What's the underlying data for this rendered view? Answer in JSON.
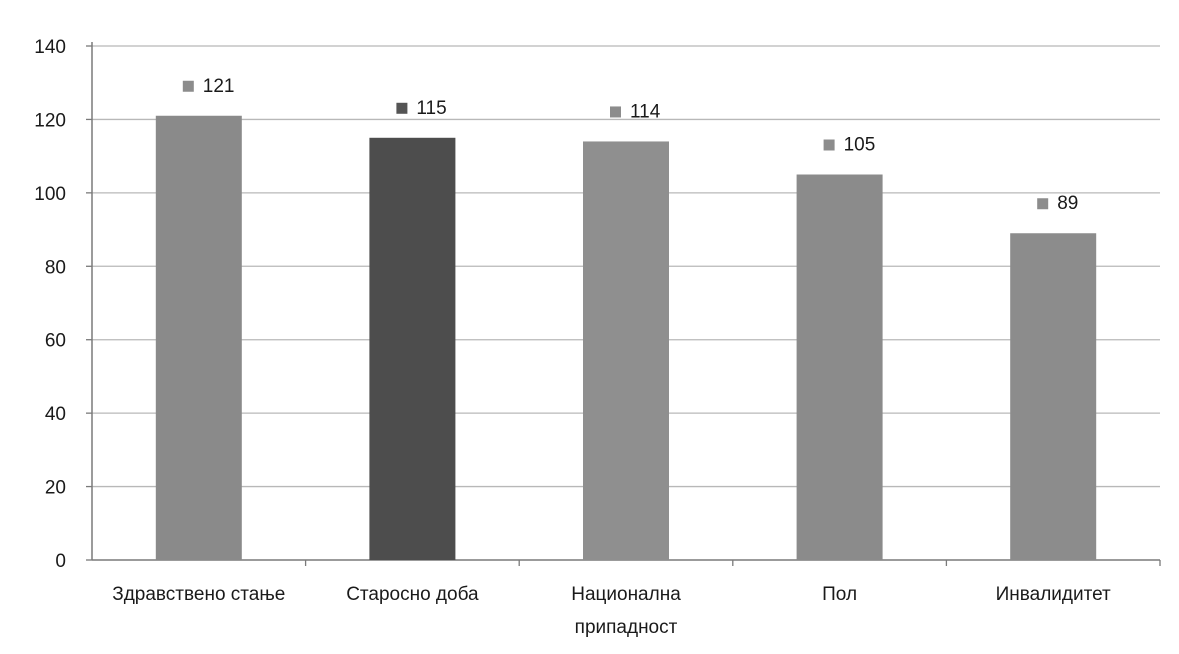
{
  "chart_data": {
    "type": "bar",
    "title": "",
    "xlabel": "",
    "ylabel": "",
    "categories": [
      [
        "Здравствено стање"
      ],
      [
        "Старосно доба"
      ],
      [
        "Национална",
        "припадност"
      ],
      [
        "Пол"
      ],
      [
        "Инвалидитет"
      ]
    ],
    "values": [
      121,
      115,
      114,
      105,
      89
    ],
    "data_labels": [
      "121",
      "115",
      "114",
      "105",
      "89"
    ],
    "ylim": [
      0,
      140
    ],
    "yticks": [
      0,
      20,
      40,
      60,
      80,
      100,
      120,
      140
    ],
    "ytick_labels": [
      "0",
      "20",
      "40",
      "60",
      "80",
      "100",
      "120",
      "140"
    ],
    "grid": true,
    "legend": "none",
    "colors": {
      "bars": [
        "#8a8a8a",
        "#4d4d4d",
        "#8f8f8f",
        "#8b8b8b",
        "#8c8c8c"
      ],
      "label_markers": [
        "#8c8c8c",
        "#555555",
        "#8c8c8c",
        "#8c8c8c",
        "#8c8c8c"
      ],
      "grid": "#b8b8b8",
      "axis": "#7a7a7a"
    }
  }
}
